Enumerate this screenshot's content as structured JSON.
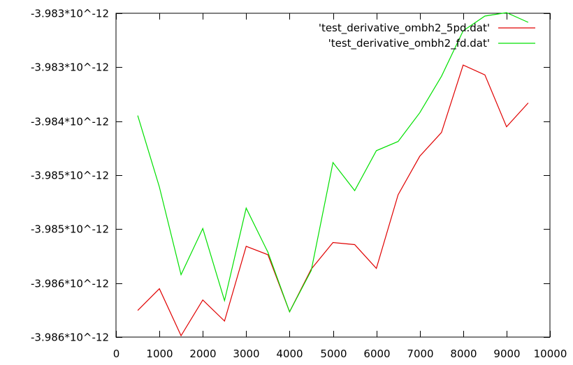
{
  "chart_data": {
    "type": "line",
    "title": "",
    "xlabel": "",
    "ylabel": "",
    "xlim": [
      0,
      10000
    ],
    "ylim": [
      -3.986e-12,
      -3.983e-12
    ],
    "grid": false,
    "legend_position": "top-right",
    "x_ticks": [
      {
        "value": 0,
        "label": "0"
      },
      {
        "value": 1000,
        "label": "1000"
      },
      {
        "value": 2000,
        "label": "2000"
      },
      {
        "value": 3000,
        "label": "3000"
      },
      {
        "value": 4000,
        "label": "4000"
      },
      {
        "value": 5000,
        "label": "5000"
      },
      {
        "value": 6000,
        "label": "6000"
      },
      {
        "value": 7000,
        "label": "7000"
      },
      {
        "value": 8000,
        "label": "8000"
      },
      {
        "value": 9000,
        "label": "9000"
      },
      {
        "value": 10000,
        "label": "10000"
      }
    ],
    "y_ticks": [
      {
        "value": -3.983e-12,
        "label": "-3.983*10^-12"
      },
      {
        "value": -3.9835e-12,
        "label": "-3.983*10^-12"
      },
      {
        "value": -3.984e-12,
        "label": "-3.984*10^-12"
      },
      {
        "value": -3.9845e-12,
        "label": "-3.985*10^-12"
      },
      {
        "value": -3.985e-12,
        "label": "-3.985*10^-12"
      },
      {
        "value": -3.9855e-12,
        "label": "-3.986*10^-12"
      },
      {
        "value": -3.986e-12,
        "label": "-3.986*10^-12"
      }
    ],
    "x": [
      500,
      1000,
      1500,
      2000,
      2500,
      3000,
      3500,
      4000,
      4500,
      5000,
      5500,
      6000,
      6500,
      7000,
      7500,
      8000,
      8500,
      9000,
      9500
    ],
    "series": [
      {
        "name": "'test_derivative_ombh2_5pd.dat'",
        "color": "#e00000",
        "values": [
          -3.985753e-12,
          -3.985552e-12,
          -3.985987e-12,
          -3.985656e-12,
          -3.985851e-12,
          -3.985159e-12,
          -3.985237e-12,
          -3.985766e-12,
          -3.98537e-12,
          -3.985124e-12,
          -3.985143e-12,
          -3.985364e-12,
          -3.984682e-12,
          -3.984325e-12,
          -3.984104e-12,
          -3.98348e-12,
          -3.983571e-12,
          -3.984052e-12,
          -3.983831e-12
        ]
      },
      {
        "name": "'test_derivative_ombh2_fd.dat'",
        "color": "#00e000",
        "values": [
          -3.983948e-12,
          -3.98461e-12,
          -3.985422e-12,
          -3.984994e-12,
          -3.985662e-12,
          -3.984805e-12,
          -3.985214e-12,
          -3.985766e-12,
          -3.985383e-12,
          -3.984383e-12,
          -3.984643e-12,
          -3.984273e-12,
          -3.984188e-12,
          -3.983922e-12,
          -3.983584e-12,
          -3.983162e-12,
          -3.983026e-12,
          -3.982994e-12,
          -3.983084e-12
        ]
      }
    ]
  }
}
